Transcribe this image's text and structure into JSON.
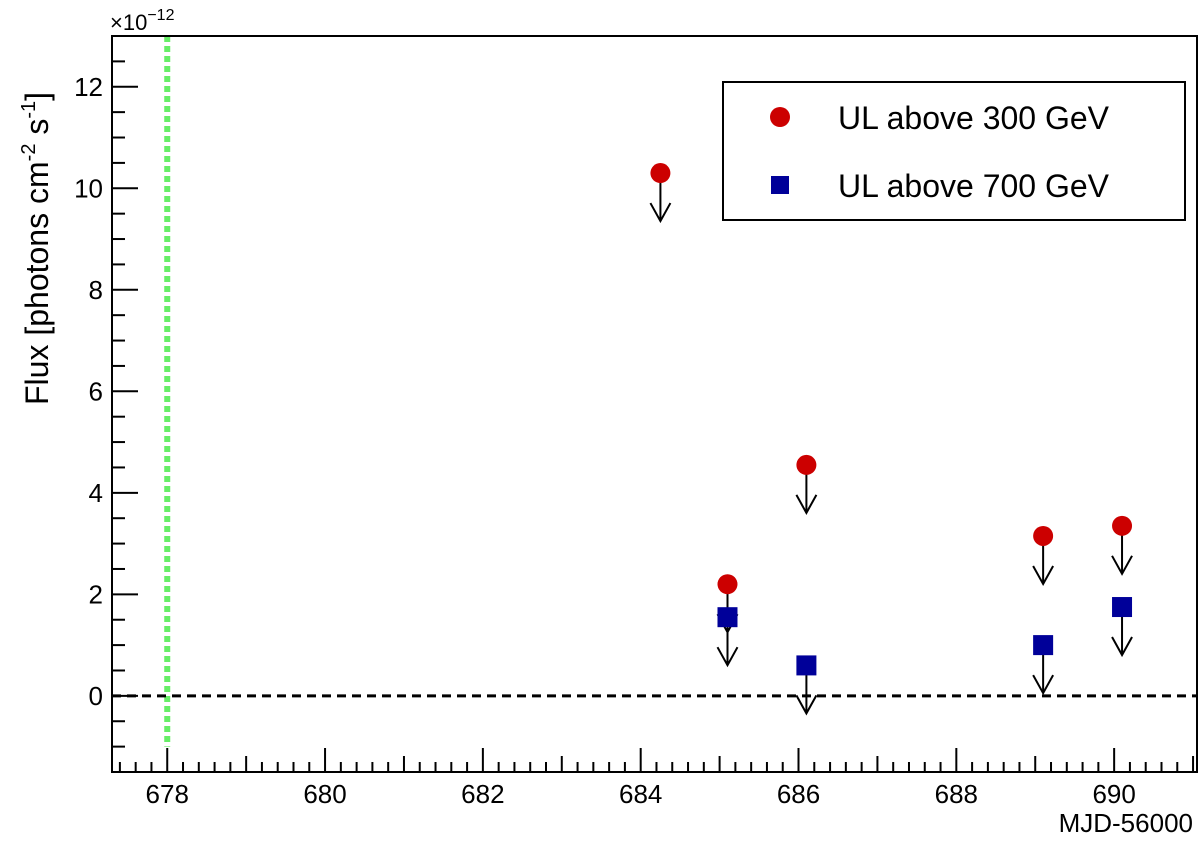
{
  "chart_data": {
    "type": "scatter",
    "title": "",
    "xlabel": "MJD-56000",
    "ylabel_parts": [
      "Flux [photons cm",
      "-2",
      " s",
      "-1",
      "]"
    ],
    "y_multiplier": "×10",
    "y_multiplier_exp": "−12",
    "xlim": [
      677.3,
      691.05
    ],
    "ylim": [
      -1.5,
      13.0
    ],
    "x_major_ticks": [
      678,
      680,
      682,
      684,
      686,
      688,
      690
    ],
    "x_tick_labels": [
      "678",
      "680",
      "682",
      "684",
      "686",
      "688",
      "690"
    ],
    "y_major_ticks": [
      0,
      2,
      4,
      6,
      8,
      10,
      12
    ],
    "y_tick_labels": [
      "0",
      "2",
      "4",
      "6",
      "8",
      "10",
      "12"
    ],
    "grid": false,
    "legend_position": "top-right",
    "reference_lines": [
      {
        "kind": "vertical",
        "x": 678.0,
        "style": "dotted",
        "color": "#66ee66"
      },
      {
        "kind": "horizontal",
        "y": 0,
        "style": "dashed",
        "color": "#000000"
      }
    ],
    "series": [
      {
        "name": "UL above 300 GeV",
        "marker": "circle",
        "color": "#cc0000",
        "upper_limits": true,
        "x": [
          684.25,
          685.1,
          686.1,
          689.1,
          690.1
        ],
        "y": [
          10.3,
          2.2,
          4.55,
          3.15,
          3.35
        ]
      },
      {
        "name": "UL above 700 GeV",
        "marker": "square",
        "color": "#000099",
        "upper_limits": true,
        "x": [
          685.1,
          686.1,
          689.1,
          690.1
        ],
        "y": [
          1.55,
          0.6,
          1.0,
          1.75
        ]
      }
    ]
  }
}
